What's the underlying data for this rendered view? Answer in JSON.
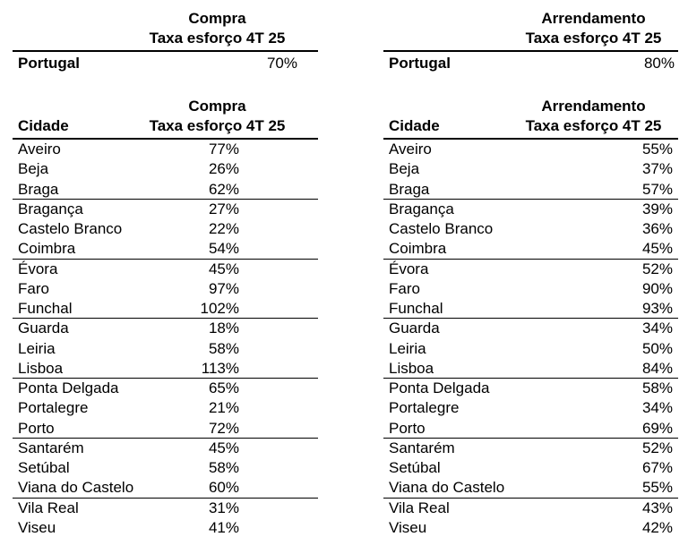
{
  "page": {
    "background": "#ffffff",
    "text_color": "#000000"
  },
  "tables": {
    "compra": {
      "category": "Compra",
      "metric": "Taxa esforço 4T 25",
      "country": {
        "label": "Portugal",
        "value": "70%"
      },
      "city_column": "Cidade",
      "rows": [
        {
          "name": "Aveiro",
          "value": "77%"
        },
        {
          "name": "Beja",
          "value": "26%"
        },
        {
          "name": "Braga",
          "value": "62%"
        },
        {
          "name": "Bragança",
          "value": "27%"
        },
        {
          "name": "Castelo Branco",
          "value": "22%"
        },
        {
          "name": "Coimbra",
          "value": "54%"
        },
        {
          "name": "Évora",
          "value": "45%"
        },
        {
          "name": "Faro",
          "value": "97%"
        },
        {
          "name": "Funchal",
          "value": "102%"
        },
        {
          "name": "Guarda",
          "value": "18%"
        },
        {
          "name": "Leiria",
          "value": "58%"
        },
        {
          "name": "Lisboa",
          "value": "113%"
        },
        {
          "name": "Ponta Delgada",
          "value": "65%"
        },
        {
          "name": "Portalegre",
          "value": "21%"
        },
        {
          "name": "Porto",
          "value": "72%"
        },
        {
          "name": "Santarém",
          "value": "45%"
        },
        {
          "name": "Setúbal",
          "value": "58%"
        },
        {
          "name": "Viana do Castelo",
          "value": "60%"
        },
        {
          "name": "Vila Real",
          "value": "31%"
        },
        {
          "name": "Viseu",
          "value": "41%"
        }
      ]
    },
    "arrendamento": {
      "category": "Arrendamento",
      "metric": "Taxa esforço 4T 25",
      "country": {
        "label": "Portugal",
        "value": "80%"
      },
      "city_column": "Cidade",
      "rows": [
        {
          "name": "Aveiro",
          "value": "55%"
        },
        {
          "name": "Beja",
          "value": "37%"
        },
        {
          "name": "Braga",
          "value": "57%"
        },
        {
          "name": "Bragança",
          "value": "39%"
        },
        {
          "name": "Castelo Branco",
          "value": "36%"
        },
        {
          "name": "Coimbra",
          "value": "45%"
        },
        {
          "name": "Évora",
          "value": "52%"
        },
        {
          "name": "Faro",
          "value": "90%"
        },
        {
          "name": "Funchal",
          "value": "93%"
        },
        {
          "name": "Guarda",
          "value": "34%"
        },
        {
          "name": "Leiria",
          "value": "50%"
        },
        {
          "name": "Lisboa",
          "value": "84%"
        },
        {
          "name": "Ponta Delgada",
          "value": "58%"
        },
        {
          "name": "Portalegre",
          "value": "34%"
        },
        {
          "name": "Porto",
          "value": "69%"
        },
        {
          "name": "Santarém",
          "value": "52%"
        },
        {
          "name": "Setúbal",
          "value": "67%"
        },
        {
          "name": "Viana do Castelo",
          "value": "55%"
        },
        {
          "name": "Vila Real",
          "value": "43%"
        },
        {
          "name": "Viseu",
          "value": "42%"
        }
      ]
    }
  }
}
